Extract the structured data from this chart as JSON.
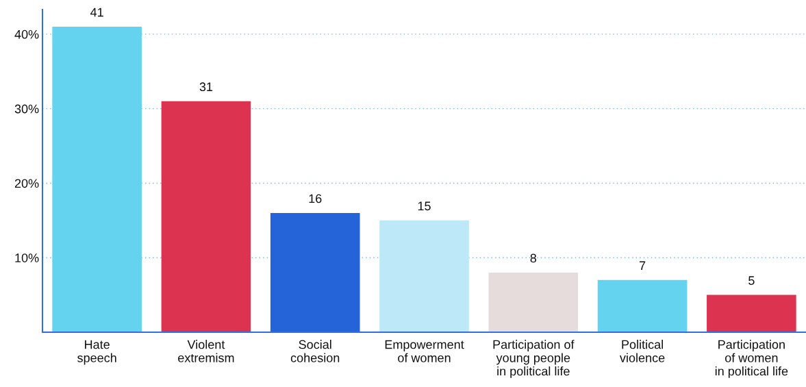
{
  "chart_data": {
    "type": "bar",
    "categories": [
      "Hate\nspeech",
      "Violent\nextremism",
      "Social\ncohesion",
      "Empowerment\nof women",
      "Participation of\nyoung people\nin political life",
      "Political\nviolence",
      "Participation\nof women\nin political life"
    ],
    "values": [
      41,
      31,
      16,
      15,
      8,
      7,
      5
    ],
    "colors": [
      "#63d3f0",
      "#dc3450",
      "#2563d9",
      "#bde8f8",
      "#e6dcdc",
      "#63d3f0",
      "#dc3450"
    ],
    "ylim": [
      0,
      43.3
    ],
    "yticks": [
      {
        "value": 10,
        "label": "10%"
      },
      {
        "value": 20,
        "label": "20%"
      },
      {
        "value": 30,
        "label": "30%"
      },
      {
        "value": 40,
        "label": "40%"
      }
    ],
    "grid": "y",
    "data_labels": true
  }
}
